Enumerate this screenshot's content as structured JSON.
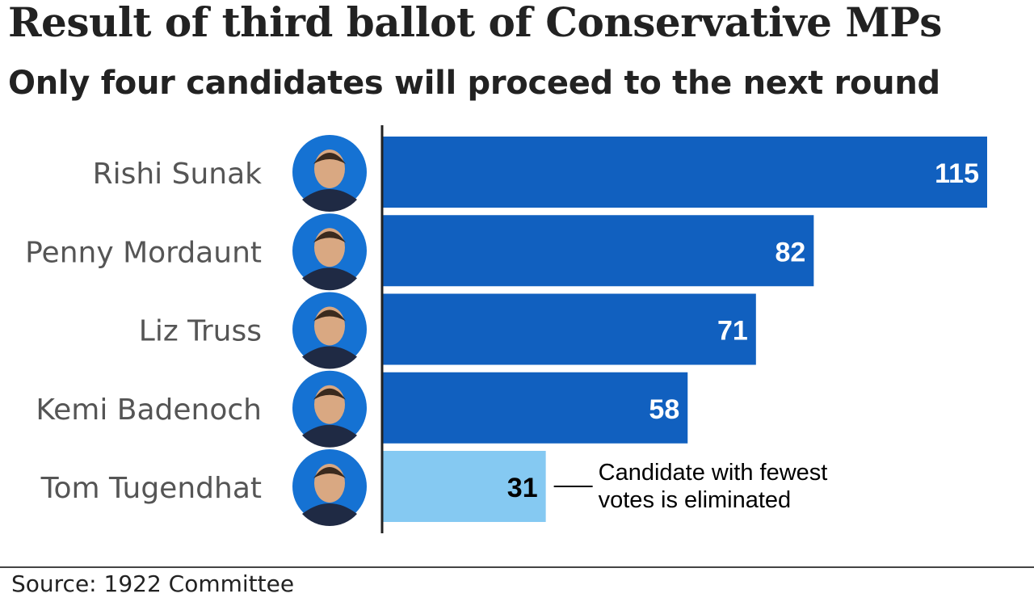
{
  "header": {
    "title": "Result of third ballot of Conservative MPs",
    "subtitle": "Only four candidates will proceed to the next round"
  },
  "chart_data": {
    "type": "bar",
    "orientation": "horizontal",
    "categories": [
      "Rishi Sunak",
      "Penny Mordaunt",
      "Liz Truss",
      "Kemi Badenoch",
      "Tom Tugendhat"
    ],
    "values": [
      115,
      82,
      71,
      58,
      31
    ],
    "bar_colors": [
      "#1160bf",
      "#1160bf",
      "#1160bf",
      "#1160bf",
      "#85c9f2"
    ],
    "label_colors": [
      "#ffffff",
      "#ffffff",
      "#ffffff",
      "#ffffff",
      "#000000"
    ],
    "xlim": [
      0,
      115
    ],
    "grid": false,
    "legend": "none",
    "annotation": {
      "target": "Tom Tugendhat",
      "lines": [
        "Candidate with fewest",
        "votes is eliminated"
      ]
    }
  },
  "footer": {
    "source": "Source: 1922 Committee"
  },
  "colors": {
    "bar_primary": "#1160bf",
    "bar_eliminated": "#85c9f2",
    "avatar_background": "#1572d3",
    "axis": "#222222",
    "category_text": "#555555"
  },
  "icons": [
    "candidate-portrait-icon"
  ]
}
